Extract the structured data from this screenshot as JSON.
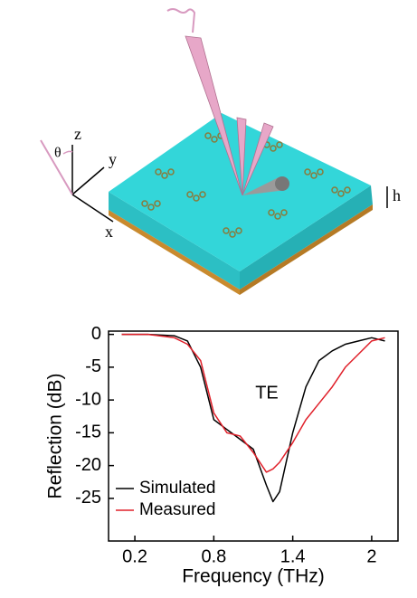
{
  "diagram": {
    "z": "z",
    "y": "y",
    "x": "x",
    "theta": "θ",
    "h": "h"
  },
  "chart_data": {
    "type": "line",
    "x_label": "Frequency (THz)",
    "y_label": "Reflection (dB)",
    "annotation": "TE",
    "x": [
      0.1,
      0.3,
      0.5,
      0.6,
      0.7,
      0.8,
      0.9,
      1.0,
      1.1,
      1.2,
      1.25,
      1.3,
      1.4,
      1.5,
      1.6,
      1.7,
      1.8,
      1.9,
      2.0,
      2.1
    ],
    "series": [
      {
        "name": "Simulated",
        "color": "#000000",
        "values": [
          0,
          0,
          -0.2,
          -1,
          -5,
          -13,
          -14.5,
          -16,
          -17.5,
          -23,
          -25.5,
          -24,
          -15,
          -8,
          -4,
          -2.5,
          -1.5,
          -1,
          -0.5,
          -1
        ]
      },
      {
        "name": "Measured",
        "color": "#e0202a",
        "values": [
          0,
          0,
          -0.5,
          -1.5,
          -4,
          -12,
          -15,
          -15.5,
          -18,
          -21,
          -20.5,
          -19.5,
          -16.5,
          -13,
          -10.5,
          -8,
          -5,
          -3,
          -1,
          -0.5
        ]
      }
    ],
    "xlim": [
      0,
      2.2
    ],
    "ylim": [
      -31.5,
      0.5
    ],
    "xticks": [
      0.2,
      0.8,
      1.4,
      2.0
    ],
    "yticks": [
      0,
      -5,
      -10,
      -15,
      -20,
      -25
    ],
    "legend": "lower-left",
    "grid": false
  }
}
